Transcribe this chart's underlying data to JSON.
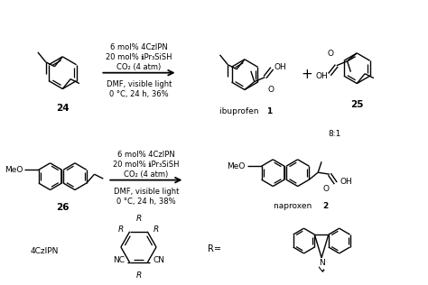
{
  "background_color": "#ffffff",
  "figsize": [
    4.74,
    3.16
  ],
  "dpi": 100,
  "r1_reagents": [
    "6 mol% 4CzIPN",
    "20 mol% ℹPr₃SiSH",
    "CO₂ (4 atm)"
  ],
  "r1_conditions": [
    "DMF, visible light",
    "0 °C, 24 h, 36%"
  ],
  "r2_reagents": [
    "6 mol% 4CzIPN",
    "20 mol% ℹPr₃SiSH",
    "CO₂ (4 atm)"
  ],
  "r2_conditions": [
    "DMF, visible light",
    "0 °C, 24 h, 38%"
  ],
  "label24": "24",
  "label25": "25",
  "label26": "26",
  "label_ibuprofen": "ibuprofen ",
  "label_ibuprofen_num": "1",
  "label_naproxen": "naproxen ",
  "label_naproxen_num": "2",
  "label_ratio": "8:1",
  "label_4czipn": "4CzIPN",
  "label_R": "R=",
  "tc": "#000000"
}
